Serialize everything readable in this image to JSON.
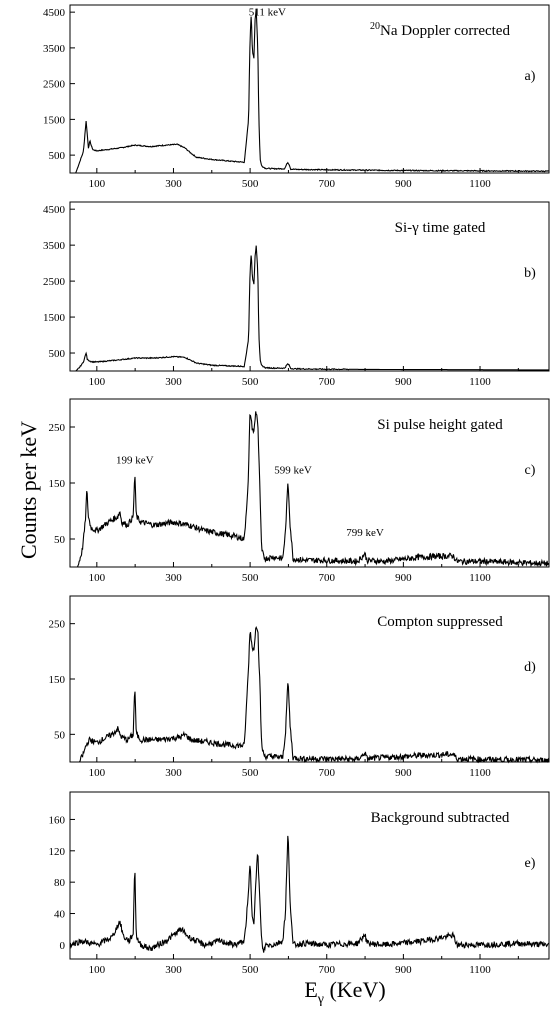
{
  "figure": {
    "ylabel": "Counts per keV",
    "xlabel_main": "E",
    "xlabel_sub": "γ",
    "xlabel_unit": " (KeV)"
  },
  "chart_data": [
    {
      "type": "line",
      "panel": "a)",
      "title_sup": "20",
      "title": "Na Doppler corrected",
      "xlim": [
        30,
        1280
      ],
      "ylim": [
        0,
        4700
      ],
      "x_ticks": [
        100,
        300,
        500,
        700,
        900,
        1100
      ],
      "y_ticks": [
        500,
        1500,
        2500,
        3500,
        4500
      ],
      "annotations": [
        {
          "text": "511 keV",
          "x": 545,
          "y": 4400
        }
      ],
      "x": [
        30,
        45,
        55,
        65,
        72,
        75,
        78,
        82,
        86,
        90,
        100,
        130,
        160,
        200,
        240,
        280,
        310,
        330,
        345,
        360,
        400,
        450,
        485,
        496,
        500,
        503,
        506,
        510,
        513,
        516,
        520,
        523,
        526,
        530,
        540,
        560,
        590,
        598,
        602,
        606,
        620,
        700,
        800,
        900,
        1000,
        1100,
        1200,
        1280
      ],
      "y": [
        0,
        0,
        300,
        600,
        1450,
        1100,
        700,
        900,
        750,
        650,
        620,
        660,
        700,
        780,
        740,
        780,
        800,
        700,
        560,
        440,
        380,
        330,
        300,
        1500,
        3800,
        4500,
        3400,
        3200,
        4300,
        4600,
        3500,
        1500,
        400,
        200,
        130,
        120,
        120,
        300,
        240,
        110,
        100,
        90,
        80,
        70,
        65,
        60,
        55,
        50
      ]
    },
    {
      "type": "line",
      "panel": "b)",
      "title": "Si-γ time gated",
      "xlim": [
        30,
        1280
      ],
      "ylim": [
        0,
        4700
      ],
      "x_ticks": [
        100,
        300,
        500,
        700,
        900,
        1100
      ],
      "y_ticks": [
        500,
        1500,
        2500,
        3500,
        4500
      ],
      "annotations": [],
      "x": [
        30,
        45,
        55,
        65,
        72,
        75,
        78,
        85,
        100,
        150,
        200,
        250,
        300,
        330,
        345,
        360,
        400,
        450,
        485,
        496,
        500,
        503,
        506,
        510,
        513,
        516,
        520,
        523,
        526,
        530,
        540,
        560,
        590,
        598,
        602,
        606,
        620,
        700,
        800,
        900,
        1000,
        1100,
        1200,
        1280
      ],
      "y": [
        0,
        0,
        100,
        250,
        500,
        330,
        300,
        260,
        250,
        300,
        360,
        360,
        400,
        380,
        300,
        220,
        160,
        140,
        130,
        900,
        2800,
        3300,
        2600,
        2400,
        3200,
        3500,
        2800,
        1000,
        300,
        150,
        90,
        80,
        80,
        200,
        160,
        70,
        60,
        50,
        45,
        40,
        38,
        35,
        32,
        30
      ]
    },
    {
      "type": "line",
      "panel": "c)",
      "title": "Si pulse height gated",
      "xlim": [
        30,
        1280
      ],
      "ylim": [
        0,
        300
      ],
      "x_ticks": [
        100,
        300,
        500,
        700,
        900,
        1100
      ],
      "y_ticks": [
        50,
        150,
        250
      ],
      "annotations": [
        {
          "text": "199 keV",
          "x": 199,
          "y": 185
        },
        {
          "text": "599 keV",
          "x": 612,
          "y": 167
        },
        {
          "text": "799 keV",
          "x": 800,
          "y": 55
        }
      ],
      "x": [
        30,
        50,
        62,
        70,
        74,
        78,
        85,
        100,
        130,
        155,
        160,
        165,
        180,
        195,
        199,
        203,
        215,
        250,
        300,
        340,
        380,
        420,
        460,
        485,
        495,
        500,
        505,
        510,
        515,
        520,
        525,
        530,
        535,
        540,
        560,
        585,
        592,
        599,
        604,
        612,
        640,
        700,
        780,
        795,
        799,
        805,
        850,
        950,
        1030,
        1040,
        1100,
        1200,
        1280
      ],
      "y": [
        0,
        0,
        30,
        80,
        140,
        90,
        70,
        65,
        80,
        90,
        100,
        80,
        75,
        90,
        170,
        90,
        80,
        75,
        80,
        75,
        65,
        60,
        55,
        50,
        150,
        280,
        250,
        240,
        280,
        260,
        150,
        30,
        20,
        15,
        18,
        15,
        60,
        155,
        80,
        15,
        12,
        12,
        10,
        20,
        25,
        12,
        10,
        18,
        20,
        10,
        10,
        8,
        6
      ]
    },
    {
      "type": "line",
      "panel": "d)",
      "title": "Compton suppressed",
      "xlim": [
        30,
        1280
      ],
      "ylim": [
        0,
        300
      ],
      "x_ticks": [
        100,
        300,
        500,
        700,
        900,
        1100
      ],
      "y_ticks": [
        50,
        150,
        250
      ],
      "annotations": [],
      "x": [
        30,
        55,
        65,
        72,
        80,
        100,
        140,
        155,
        160,
        165,
        180,
        195,
        199,
        203,
        215,
        260,
        320,
        330,
        345,
        400,
        450,
        485,
        495,
        500,
        505,
        510,
        515,
        520,
        525,
        530,
        535,
        540,
        560,
        585,
        592,
        599,
        604,
        612,
        640,
        700,
        780,
        795,
        799,
        805,
        850,
        950,
        1030,
        1040,
        1100,
        1200,
        1280
      ],
      "y": [
        0,
        0,
        15,
        30,
        40,
        35,
        50,
        60,
        50,
        45,
        40,
        50,
        140,
        50,
        40,
        40,
        45,
        50,
        40,
        35,
        30,
        30,
        160,
        240,
        210,
        200,
        250,
        240,
        150,
        30,
        15,
        10,
        10,
        8,
        50,
        150,
        70,
        8,
        6,
        6,
        5,
        12,
        18,
        6,
        8,
        12,
        14,
        6,
        5,
        4,
        3
      ]
    },
    {
      "type": "line",
      "panel": "e)",
      "title": "Background subtracted",
      "xlim": [
        30,
        1280
      ],
      "ylim": [
        -18,
        195
      ],
      "x_ticks": [
        100,
        300,
        500,
        700,
        900,
        1100
      ],
      "y_ticks": [
        0,
        40,
        80,
        120,
        160
      ],
      "annotations": [],
      "x": [
        30,
        60,
        100,
        140,
        155,
        160,
        170,
        185,
        195,
        199,
        203,
        215,
        240,
        280,
        320,
        340,
        380,
        420,
        460,
        485,
        495,
        500,
        505,
        510,
        515,
        520,
        525,
        530,
        535,
        540,
        560,
        585,
        592,
        599,
        604,
        612,
        640,
        700,
        780,
        795,
        799,
        805,
        850,
        950,
        1030,
        1040,
        1100,
        1200,
        1280
      ],
      "y": [
        0,
        5,
        0,
        10,
        25,
        30,
        10,
        5,
        15,
        105,
        10,
        0,
        -5,
        5,
        20,
        10,
        0,
        5,
        0,
        5,
        60,
        105,
        40,
        30,
        80,
        120,
        60,
        5,
        -10,
        0,
        0,
        5,
        40,
        145,
        60,
        0,
        2,
        0,
        2,
        10,
        15,
        2,
        0,
        5,
        12,
        0,
        0,
        2,
        0
      ]
    }
  ]
}
